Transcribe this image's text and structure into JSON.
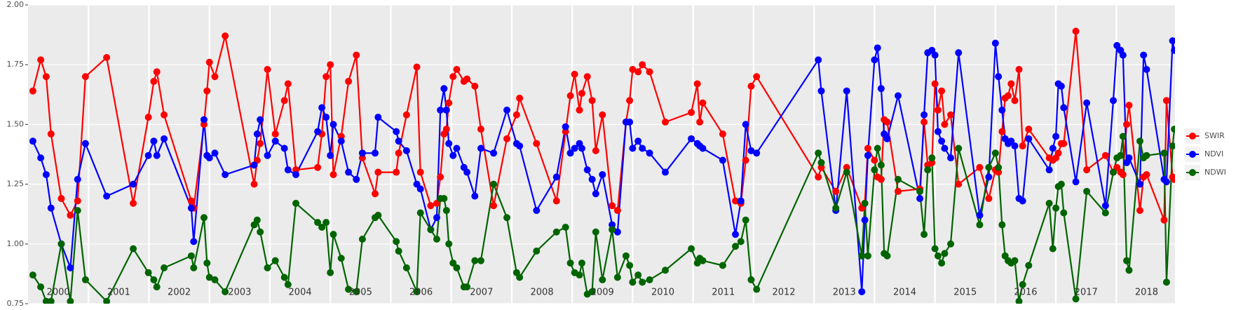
{
  "chart_data": {
    "type": "line",
    "x": [
      2000.08,
      2000.21,
      2000.3,
      2000.38,
      2000.55,
      2000.7,
      2000.82,
      2000.95,
      2001.3,
      2001.74,
      2001.99,
      2002.08,
      2002.13,
      2002.25,
      2002.7,
      2002.74,
      2002.91,
      2002.96,
      2003.0,
      2003.09,
      2003.26,
      2003.74,
      2003.79,
      2003.84,
      2003.96,
      2004.09,
      2004.24,
      2004.3,
      2004.43,
      2004.79,
      2004.86,
      2004.93,
      2005.0,
      2005.05,
      2005.18,
      2005.3,
      2005.43,
      2005.53,
      2005.74,
      2005.79,
      2006.09,
      2006.13,
      2006.26,
      2006.43,
      2006.49,
      2006.66,
      2006.76,
      2006.82,
      2006.88,
      2006.92,
      2006.96,
      2007.03,
      2007.09,
      2007.21,
      2007.26,
      2007.39,
      2007.49,
      2007.7,
      2007.92,
      2008.08,
      2008.13,
      2008.41,
      2008.74,
      2008.89,
      2008.97,
      2009.04,
      2009.12,
      2009.16,
      2009.25,
      2009.33,
      2009.39,
      2009.5,
      2009.66,
      2009.75,
      2009.89,
      2009.95,
      2010.0,
      2010.09,
      2010.16,
      2010.28,
      2010.54,
      2010.97,
      2011.07,
      2011.11,
      2011.16,
      2011.49,
      2011.7,
      2011.79,
      2011.87,
      2011.96,
      2012.05,
      2013.07,
      2013.12,
      2013.36,
      2013.54,
      2013.79,
      2013.84,
      2013.89,
      2014.0,
      2014.05,
      2014.11,
      2014.16,
      2014.21,
      2014.39,
      2014.75,
      2014.82,
      2014.88,
      2014.95,
      2015.0,
      2015.05,
      2015.11,
      2015.16,
      2015.26,
      2015.39,
      2015.74,
      2015.89,
      2016.0,
      2016.05,
      2016.11,
      2016.16,
      2016.21,
      2016.26,
      2016.32,
      2016.39,
      2016.45,
      2016.55,
      2016.89,
      2016.95,
      2017.0,
      2017.04,
      2017.09,
      2017.13,
      2017.33,
      2017.51,
      2017.82,
      2017.95,
      2018.01,
      2018.07,
      2018.11,
      2018.17,
      2018.21,
      2018.39,
      2018.45,
      2018.5,
      2018.79,
      2018.83,
      2018.93,
      2018.96
    ],
    "series": [
      {
        "name": "SWIR",
        "color": "#ff0000",
        "values": [
          1.64,
          1.77,
          1.7,
          1.46,
          1.19,
          1.12,
          1.18,
          1.7,
          1.78,
          1.17,
          1.53,
          1.68,
          1.72,
          1.54,
          1.18,
          1.15,
          1.5,
          1.64,
          1.76,
          1.7,
          1.87,
          1.25,
          1.35,
          1.42,
          1.73,
          1.46,
          1.6,
          1.67,
          1.31,
          1.32,
          1.46,
          1.7,
          1.75,
          1.29,
          1.45,
          1.68,
          1.79,
          1.36,
          1.21,
          1.3,
          1.3,
          1.38,
          1.54,
          1.74,
          1.3,
          1.16,
          1.17,
          1.28,
          1.46,
          1.48,
          1.59,
          1.7,
          1.73,
          1.68,
          1.69,
          1.66,
          1.48,
          1.16,
          1.44,
          1.54,
          1.61,
          1.42,
          1.18,
          1.47,
          1.62,
          1.71,
          1.56,
          1.63,
          1.7,
          1.6,
          1.39,
          1.54,
          1.16,
          1.14,
          1.51,
          1.6,
          1.73,
          1.72,
          1.75,
          1.72,
          1.51,
          1.55,
          1.67,
          1.51,
          1.59,
          1.46,
          1.18,
          1.17,
          1.35,
          1.66,
          1.7,
          1.28,
          1.32,
          1.22,
          1.32,
          1.15,
          1.17,
          1.4,
          1.35,
          1.28,
          1.27,
          1.52,
          1.51,
          1.22,
          1.23,
          1.51,
          1.33,
          1.34,
          1.67,
          1.56,
          1.64,
          1.5,
          1.54,
          1.25,
          1.32,
          1.19,
          1.31,
          1.3,
          1.47,
          1.61,
          1.62,
          1.67,
          1.6,
          1.73,
          1.41,
          1.48,
          1.36,
          1.35,
          1.36,
          1.38,
          1.42,
          1.42,
          1.89,
          1.31,
          1.37,
          1.3,
          1.32,
          1.3,
          1.29,
          1.5,
          1.58,
          1.14,
          1.28,
          1.29,
          1.1,
          1.6,
          1.28,
          1.27
        ]
      },
      {
        "name": "NDVI",
        "color": "#0000ff",
        "values": [
          1.43,
          1.36,
          1.29,
          1.15,
          1.0,
          0.9,
          1.27,
          1.42,
          1.2,
          1.25,
          1.37,
          1.43,
          1.37,
          1.44,
          1.15,
          1.01,
          1.52,
          1.37,
          1.36,
          1.38,
          1.29,
          1.33,
          1.46,
          1.52,
          1.37,
          1.43,
          1.4,
          1.31,
          1.29,
          1.47,
          1.57,
          1.53,
          1.37,
          1.5,
          1.43,
          1.3,
          1.27,
          1.38,
          1.38,
          1.53,
          1.47,
          1.43,
          1.39,
          1.25,
          1.23,
          1.06,
          1.11,
          1.56,
          1.65,
          1.56,
          1.42,
          1.37,
          1.4,
          1.32,
          1.3,
          1.2,
          1.4,
          1.38,
          1.56,
          1.42,
          1.41,
          1.14,
          1.28,
          1.49,
          1.38,
          1.4,
          1.42,
          1.4,
          1.31,
          1.27,
          1.21,
          1.29,
          1.08,
          1.05,
          1.51,
          1.51,
          1.4,
          1.43,
          1.4,
          1.38,
          1.3,
          1.44,
          1.42,
          1.41,
          1.4,
          1.35,
          1.04,
          1.18,
          1.5,
          1.39,
          1.38,
          1.77,
          1.64,
          1.14,
          1.64,
          0.8,
          1.1,
          1.37,
          1.77,
          1.82,
          1.65,
          1.46,
          1.44,
          1.62,
          1.19,
          1.54,
          1.8,
          1.81,
          1.79,
          1.47,
          1.43,
          1.4,
          1.36,
          1.8,
          1.12,
          1.28,
          1.84,
          1.7,
          1.56,
          1.44,
          1.42,
          1.43,
          1.41,
          1.19,
          1.18,
          1.44,
          1.31,
          1.4,
          1.45,
          1.67,
          1.66,
          1.57,
          1.26,
          1.59,
          1.16,
          1.6,
          1.83,
          1.81,
          1.79,
          1.34,
          1.36,
          1.25,
          1.79,
          1.73,
          1.27,
          1.26,
          1.85,
          1.81
        ]
      },
      {
        "name": "NDWI",
        "color": "#006400",
        "values": [
          0.87,
          0.82,
          0.76,
          0.76,
          1.0,
          0.76,
          1.14,
          0.85,
          0.76,
          0.98,
          0.88,
          0.85,
          0.82,
          0.9,
          0.95,
          0.9,
          1.11,
          0.92,
          0.86,
          0.85,
          0.8,
          1.08,
          1.1,
          1.05,
          0.9,
          0.93,
          0.86,
          0.83,
          1.17,
          1.09,
          1.07,
          1.09,
          0.88,
          1.04,
          0.94,
          0.81,
          0.8,
          1.02,
          1.11,
          1.12,
          1.01,
          0.97,
          0.9,
          0.8,
          1.13,
          1.06,
          1.02,
          1.19,
          1.19,
          1.14,
          1.0,
          0.92,
          0.9,
          0.82,
          0.82,
          0.93,
          0.93,
          1.25,
          1.11,
          0.88,
          0.86,
          0.97,
          1.05,
          1.07,
          0.92,
          0.88,
          0.87,
          0.92,
          0.79,
          0.8,
          1.05,
          0.85,
          1.06,
          0.86,
          0.95,
          0.91,
          0.84,
          0.87,
          0.84,
          0.85,
          0.89,
          0.98,
          0.92,
          0.94,
          0.93,
          0.91,
          0.99,
          1.01,
          1.1,
          0.85,
          0.81,
          1.38,
          1.34,
          1.15,
          1.3,
          0.95,
          1.17,
          0.95,
          1.31,
          1.4,
          1.33,
          0.96,
          0.95,
          1.27,
          1.22,
          1.04,
          1.31,
          1.36,
          0.98,
          0.95,
          0.92,
          0.96,
          1.0,
          1.4,
          1.08,
          1.32,
          1.38,
          1.32,
          1.08,
          0.95,
          0.93,
          0.92,
          0.93,
          0.76,
          0.83,
          0.91,
          1.17,
          0.98,
          1.15,
          1.24,
          1.25,
          1.13,
          0.77,
          1.22,
          1.13,
          1.3,
          1.36,
          1.37,
          1.45,
          0.93,
          0.89,
          1.43,
          1.36,
          1.37,
          1.38,
          0.84,
          1.41,
          1.48
        ]
      }
    ],
    "xlim": [
      2000.0,
      2018.97
    ],
    "xticks": [
      2001,
      2002,
      2003,
      2004,
      2005,
      2006,
      2007,
      2008,
      2009,
      2010,
      2011,
      2012,
      2013,
      2014,
      2015,
      2016,
      2017,
      2018
    ],
    "ylim": [
      0.75,
      2.0
    ],
    "yticks": [
      {
        "value": 0.75,
        "label": "0.75"
      },
      {
        "value": 1.0,
        "label": "1.00"
      },
      {
        "value": 1.25,
        "label": "1.25"
      },
      {
        "value": 1.5,
        "label": "1.50"
      },
      {
        "value": 1.75,
        "label": "1.75"
      },
      {
        "value": 2.0,
        "label": "2.00"
      }
    ],
    "annotations": [
      {
        "x": 2000.5,
        "text": "2000"
      },
      {
        "x": 2001.5,
        "text": "2001"
      },
      {
        "x": 2002.5,
        "text": "2002"
      },
      {
        "x": 2003.5,
        "text": "2003"
      },
      {
        "x": 2004.5,
        "text": "2004"
      },
      {
        "x": 2005.5,
        "text": "2005"
      },
      {
        "x": 2006.5,
        "text": "2006"
      },
      {
        "x": 2007.5,
        "text": "2007"
      },
      {
        "x": 2008.5,
        "text": "2008"
      },
      {
        "x": 2009.5,
        "text": "2009"
      },
      {
        "x": 2010.5,
        "text": "2010"
      },
      {
        "x": 2011.5,
        "text": "2011"
      },
      {
        "x": 2012.5,
        "text": "2012"
      },
      {
        "x": 2013.5,
        "text": "2013"
      },
      {
        "x": 2014.5,
        "text": "2014"
      },
      {
        "x": 2015.5,
        "text": "2015"
      },
      {
        "x": 2016.5,
        "text": "2016"
      },
      {
        "x": 2017.5,
        "text": "2017"
      },
      {
        "x": 2018.5,
        "text": "2018"
      }
    ],
    "grid": true,
    "legend": "right"
  }
}
